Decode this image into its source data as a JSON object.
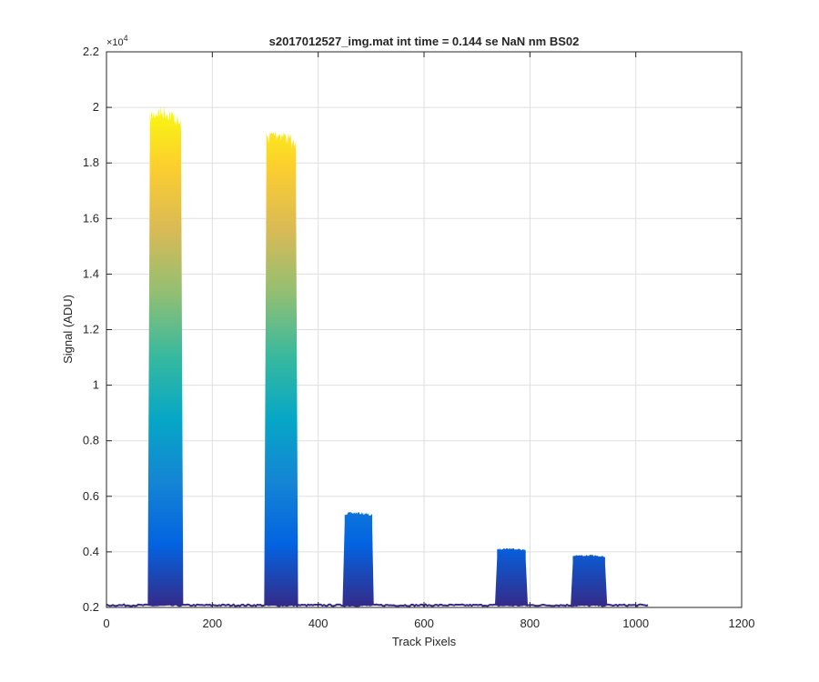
{
  "chart_data": {
    "type": "area",
    "title": "s2017012527_img.mat int time = 0.144 se  NaN nm BS02",
    "xlabel": "Track Pixels",
    "ylabel": "Signal (ADU)",
    "y_exponent_label": "×10",
    "y_exponent_power": "4",
    "xlim": [
      0,
      1200
    ],
    "ylim": [
      2000,
      22000
    ],
    "x_ticks": [
      0,
      200,
      400,
      600,
      800,
      1000,
      1200
    ],
    "x_tick_labels": [
      "0",
      "200",
      "400",
      "600",
      "800",
      "1000",
      "1200"
    ],
    "y_ticks": [
      2000,
      4000,
      6000,
      8000,
      10000,
      12000,
      14000,
      16000,
      18000,
      20000,
      22000
    ],
    "y_tick_labels": [
      "0.2",
      "0.4",
      "0.6",
      "0.8",
      "1",
      "1.2",
      "1.4",
      "1.6",
      "1.8",
      "2",
      "2.2"
    ],
    "grid": true,
    "baseline": 2080,
    "x_data_range": [
      0,
      1024
    ],
    "colormap": [
      "#352a87",
      "#0363e1",
      "#1485d4",
      "#06a7c6",
      "#38b99e",
      "#92bf73",
      "#d9ba56",
      "#fcce2e",
      "#f9fb0e"
    ],
    "peaks": [
      {
        "x_start": 78,
        "x_end": 145,
        "x_peak_left": 82,
        "x_peak_right": 141,
        "max": 20100,
        "mean_top": 19400
      },
      {
        "x_start": 298,
        "x_end": 362,
        "x_peak_left": 302,
        "x_peak_right": 358,
        "max": 19300,
        "mean_top": 18000
      },
      {
        "x_start": 446,
        "x_end": 505,
        "x_peak_left": 450,
        "x_peak_right": 502,
        "max": 5450,
        "mean_top": 5150
      },
      {
        "x_start": 734,
        "x_end": 796,
        "x_peak_left": 738,
        "x_peak_right": 792,
        "max": 4150,
        "mean_top": 3900
      },
      {
        "x_start": 877,
        "x_end": 946,
        "x_peak_left": 881,
        "x_peak_right": 942,
        "max": 3900,
        "mean_top": 3700
      }
    ]
  }
}
